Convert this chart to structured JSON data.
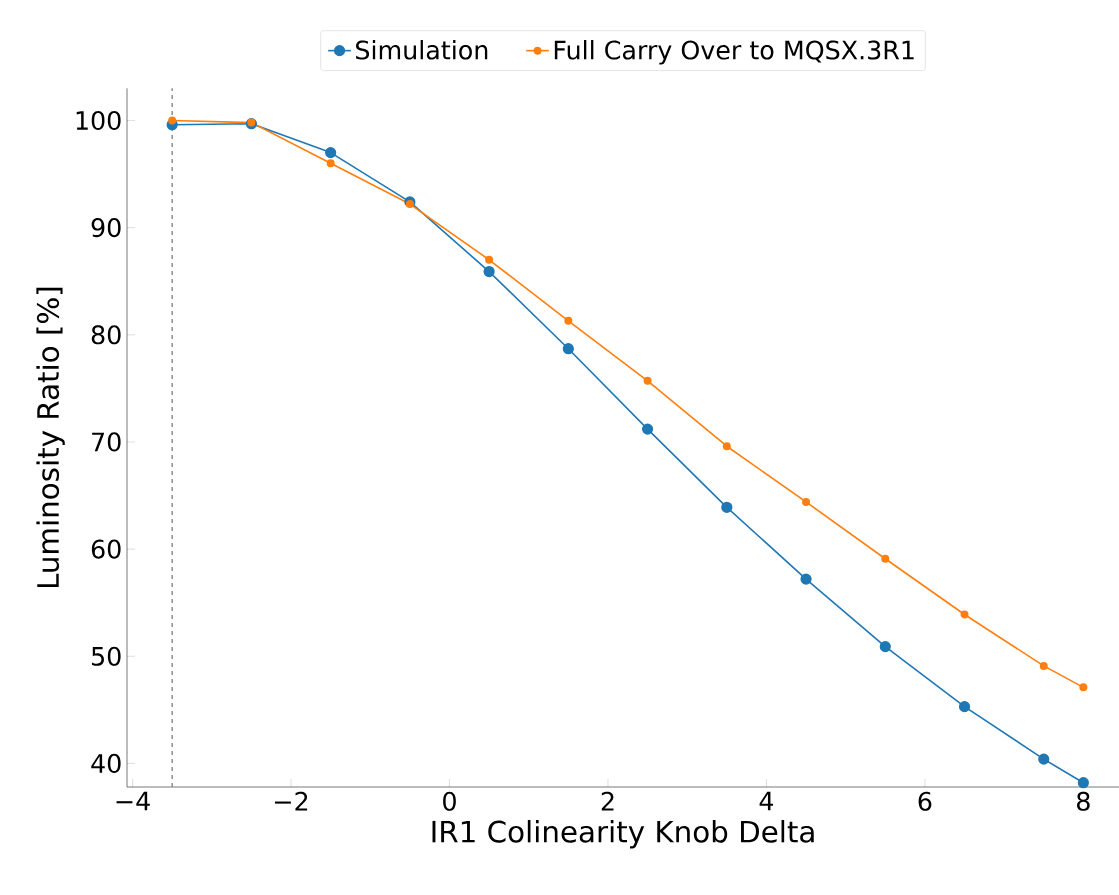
{
  "chart_data": {
    "type": "line",
    "xlabel": "IR1 Colinearity Knob Delta",
    "ylabel": "Luminosity Ratio [%]",
    "x": [
      -3.5,
      -2.5,
      -1.5,
      -0.5,
      0.5,
      1.5,
      2.5,
      3.5,
      4.5,
      5.5,
      6.5,
      7.5,
      8
    ],
    "series": [
      {
        "name": "Simulation",
        "color": "#1f77b4",
        "values": [
          99.6,
          99.7,
          97.0,
          92.4,
          85.9,
          78.7,
          71.2,
          63.9,
          57.2,
          50.9,
          45.3,
          40.4,
          38.2
        ]
      },
      {
        "name": "Full Carry Over to MQSX.3R1",
        "color": "#ff7f0e",
        "values": [
          100.0,
          99.8,
          96.0,
          92.2,
          87.0,
          81.3,
          75.7,
          69.6,
          64.4,
          59.1,
          53.9,
          49.1,
          47.1
        ]
      }
    ],
    "xlim": [
      -4.07,
      8.45
    ],
    "ylim": [
      37.8,
      103
    ],
    "xticks": [
      {
        "value": -4,
        "label": "−4"
      },
      {
        "value": -2,
        "label": "−2"
      },
      0,
      2,
      4,
      6,
      8
    ],
    "yticks": [
      40,
      50,
      60,
      70,
      80,
      90,
      100
    ],
    "ref_lines": [
      {
        "axis": "x",
        "value": -3.5,
        "color": "#808080",
        "line_style": "dashed"
      }
    ],
    "legend": "top",
    "marker": "circle",
    "line_style": "solid",
    "grid": false
  }
}
